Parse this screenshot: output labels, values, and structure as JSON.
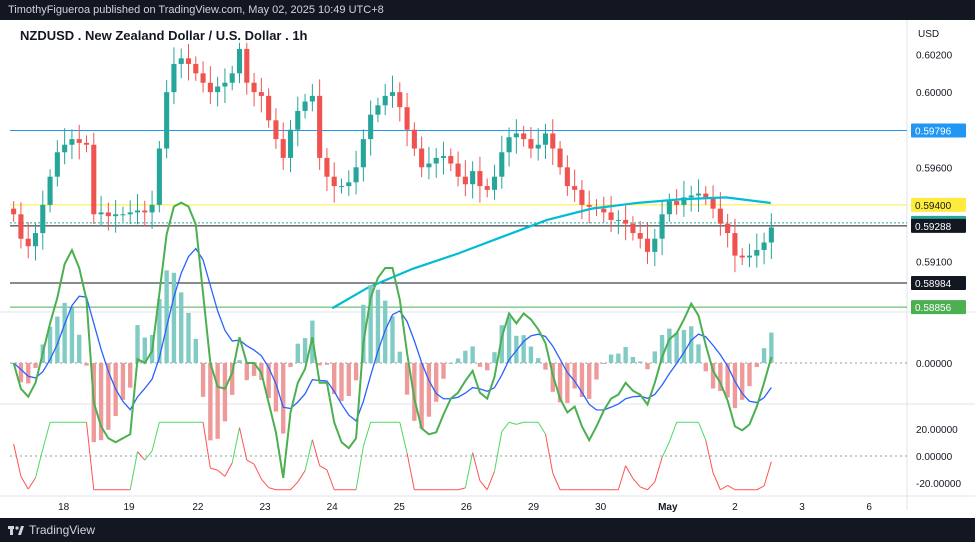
{
  "header": {
    "publisher_line": "TimothyFigueroa published on TradingView.com, May 02, 2025 10:49 UTC+8"
  },
  "footer": {
    "brand": "TradingView"
  },
  "chart_data": {
    "type": "candlestick",
    "title": "NZDUSD . New Zealand Dollar / U.S. Dollar . 1h",
    "currency": "USD",
    "ylim": [
      0.5883,
      0.6032
    ],
    "price_ticks": [
      {
        "value": 0.602,
        "label": "0.60200"
      },
      {
        "value": 0.6,
        "label": "0.60000"
      },
      {
        "value": 0.596,
        "label": "0.59600"
      },
      {
        "value": 0.591,
        "label": "0.59100"
      }
    ],
    "x_ticks": [
      {
        "t": 0.06,
        "label": "18"
      },
      {
        "t": 0.133,
        "label": "19"
      },
      {
        "t": 0.21,
        "label": "22"
      },
      {
        "t": 0.285,
        "label": "23"
      },
      {
        "t": 0.36,
        "label": "24"
      },
      {
        "t": 0.435,
        "label": "25"
      },
      {
        "t": 0.51,
        "label": "26"
      },
      {
        "t": 0.585,
        "label": "29"
      },
      {
        "t": 0.66,
        "label": "30"
      },
      {
        "t": 0.735,
        "label": "May"
      },
      {
        "t": 0.81,
        "label": "2"
      },
      {
        "t": 0.885,
        "label": "3"
      },
      {
        "t": 0.96,
        "label": "6"
      }
    ],
    "levels": [
      {
        "value": 0.59796,
        "label": "0.59796",
        "color": "#2196f3"
      },
      {
        "value": 0.594,
        "label": "0.59400",
        "color": "#ffeb3b"
      },
      {
        "value": 0.59304,
        "label": "0.59304",
        "color": "#26a69a"
      },
      {
        "value": 0.59288,
        "label": "0.59288",
        "color": "#131722"
      },
      {
        "value": 0.58984,
        "label": "0.58984",
        "color": "#131722"
      },
      {
        "value": 0.58856,
        "label": "0.58856",
        "color": "#4caf50"
      }
    ],
    "series": [
      {
        "name": "price",
        "close": [
          0.5935,
          0.5922,
          0.5918,
          0.5925,
          0.594,
          0.5955,
          0.5968,
          0.5972,
          0.5975,
          0.5973,
          0.5972,
          0.5935,
          0.5936,
          0.5934,
          0.5935,
          0.5935,
          0.5936,
          0.5937,
          0.5936,
          0.594,
          0.597,
          0.6,
          0.6015,
          0.6018,
          0.6015,
          0.601,
          0.6005,
          0.6,
          0.6003,
          0.6005,
          0.601,
          0.6023,
          0.6005,
          0.6,
          0.5998,
          0.5985,
          0.5975,
          0.5965,
          0.598,
          0.599,
          0.5995,
          0.5998,
          0.5965,
          0.5955,
          0.595,
          0.595,
          0.5952,
          0.596,
          0.5975,
          0.5988,
          0.5993,
          0.5998,
          0.6,
          0.5992,
          0.598,
          0.597,
          0.596,
          0.5962,
          0.5965,
          0.5966,
          0.5962,
          0.5955,
          0.5951,
          0.5958,
          0.595,
          0.5948,
          0.5955,
          0.5968,
          0.5976,
          0.5978,
          0.5975,
          0.597,
          0.5972,
          0.5978,
          0.597,
          0.596,
          0.595,
          0.5948,
          0.594,
          0.5939,
          0.5938,
          0.5936,
          0.5932,
          0.5932,
          0.593,
          0.5925,
          0.5922,
          0.5915,
          0.5922,
          0.5935,
          0.5942,
          0.594,
          0.5944,
          0.5945,
          0.5946,
          0.5944,
          0.5938,
          0.593,
          0.5925,
          0.5913,
          0.5912,
          0.5913,
          0.5916,
          0.592,
          0.5928
        ]
      },
      {
        "name": "ma",
        "color": "#00bcd4",
        "values": [
          [
            0.36,
            0.5885
          ],
          [
            0.4,
            0.5896
          ],
          [
            0.45,
            0.5906
          ],
          [
            0.5,
            0.5914
          ],
          [
            0.55,
            0.5923
          ],
          [
            0.6,
            0.5932
          ],
          [
            0.65,
            0.5938
          ],
          [
            0.7,
            0.5941
          ],
          [
            0.75,
            0.5943
          ],
          [
            0.8,
            0.5944
          ],
          [
            0.85,
            0.5941
          ],
          [
            0.9,
            0.5938
          ],
          [
            0.95,
            0.5937
          ],
          [
            1.0,
            0.5936
          ]
        ]
      }
    ],
    "macd_ticks": [
      {
        "value": 0,
        "label": "0.00000"
      }
    ],
    "rsi_ticks": [
      {
        "value": 20,
        "label": "20.00000"
      },
      {
        "value": 0,
        "label": "0.00000"
      },
      {
        "value": -20,
        "label": "-20.00000"
      }
    ]
  }
}
